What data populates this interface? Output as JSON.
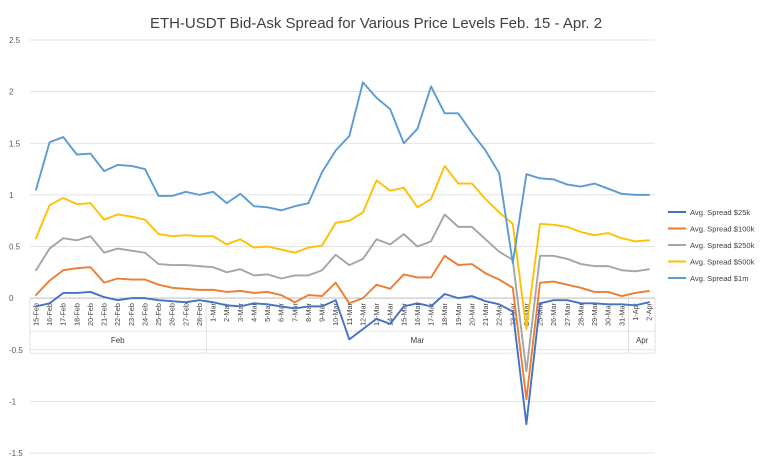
{
  "chart_data": {
    "type": "line",
    "title": "ETH-USDT Bid-Ask Spread for Various Price Levels Feb. 15 - Apr. 2",
    "xlabel": "",
    "ylabel": "",
    "ylim": [
      -1.5,
      2.5
    ],
    "ytick_step": 0.5,
    "ytick_labels": [
      "2.5",
      "2",
      "1.5",
      "1",
      "0.5",
      "0",
      "-0.5",
      "-1",
      "-1.5"
    ],
    "grid": true,
    "legend_position": "right",
    "x": [
      "15-Feb",
      "16-Feb",
      "17-Feb",
      "18-Feb",
      "20-Feb",
      "21-Feb",
      "22-Feb",
      "23-Feb",
      "24-Feb",
      "25-Feb",
      "26-Feb",
      "27-Feb",
      "28-Feb",
      "1-Mar",
      "2-Mar",
      "3-Mar",
      "4-Mar",
      "5-Mar",
      "6-Mar",
      "7-Mar",
      "8-Mar",
      "9-Mar",
      "10-Mar",
      "11-Mar",
      "12-Mar",
      "13-Mar",
      "14-Mar",
      "15-Mar",
      "16-Mar",
      "17-Mar",
      "18-Mar",
      "19-Mar",
      "20-Mar",
      "21-Mar",
      "22-Mar",
      "23-Mar",
      "24-Mar",
      "25-Mar",
      "26-Mar",
      "27-Mar",
      "28-Mar",
      "29-Mar",
      "30-Mar",
      "31-Mar",
      "1-Apr",
      "2-Apr"
    ],
    "x_groups": [
      {
        "label": "Feb",
        "start": 0,
        "end": 12
      },
      {
        "label": "Mar",
        "start": 13,
        "end": 43
      },
      {
        "label": "Apr",
        "start": 44,
        "end": 45
      }
    ],
    "series": [
      {
        "name": "Avg. Spread $25k",
        "color": "#4472C4",
        "values": [
          -0.08,
          -0.05,
          0.05,
          0.05,
          0.06,
          0.01,
          -0.02,
          0.0,
          0.0,
          -0.02,
          -0.03,
          -0.04,
          -0.02,
          -0.04,
          -0.07,
          -0.08,
          -0.05,
          -0.06,
          -0.08,
          -0.1,
          -0.08,
          -0.08,
          -0.02,
          -0.4,
          -0.3,
          -0.2,
          -0.25,
          -0.08,
          -0.05,
          -0.08,
          0.04,
          0.0,
          0.02,
          -0.03,
          -0.06,
          -0.13,
          -1.22,
          -0.05,
          -0.02,
          -0.02,
          -0.05,
          -0.05,
          -0.06,
          -0.06,
          -0.07,
          -0.04
        ]
      },
      {
        "name": "Avg. Spread $100k",
        "color": "#ED7D31",
        "values": [
          0.03,
          0.17,
          0.27,
          0.29,
          0.3,
          0.15,
          0.19,
          0.18,
          0.18,
          0.13,
          0.1,
          0.09,
          0.08,
          0.08,
          0.06,
          0.07,
          0.05,
          0.06,
          0.03,
          -0.04,
          0.03,
          0.02,
          0.15,
          -0.05,
          0.0,
          0.13,
          0.09,
          0.23,
          0.2,
          0.2,
          0.41,
          0.32,
          0.33,
          0.24,
          0.18,
          0.1,
          -0.98,
          0.15,
          0.16,
          0.13,
          0.1,
          0.06,
          0.06,
          0.02,
          0.05,
          0.07
        ]
      },
      {
        "name": "Avg. Spread $250k",
        "color": "#A5A5A5",
        "values": [
          0.27,
          0.48,
          0.58,
          0.56,
          0.6,
          0.44,
          0.48,
          0.46,
          0.44,
          0.33,
          0.32,
          0.32,
          0.31,
          0.3,
          0.25,
          0.28,
          0.22,
          0.23,
          0.19,
          0.22,
          0.22,
          0.27,
          0.42,
          0.32,
          0.38,
          0.57,
          0.52,
          0.62,
          0.5,
          0.55,
          0.81,
          0.69,
          0.69,
          0.57,
          0.45,
          0.37,
          -0.71,
          0.41,
          0.41,
          0.38,
          0.33,
          0.31,
          0.31,
          0.27,
          0.26,
          0.28
        ]
      },
      {
        "name": "Avg. Spread $500k",
        "color": "#FFC000",
        "values": [
          0.58,
          0.9,
          0.97,
          0.91,
          0.92,
          0.76,
          0.81,
          0.79,
          0.76,
          0.62,
          0.6,
          0.61,
          0.6,
          0.6,
          0.52,
          0.57,
          0.49,
          0.5,
          0.47,
          0.44,
          0.49,
          0.51,
          0.73,
          0.75,
          0.83,
          1.14,
          1.04,
          1.07,
          0.88,
          0.96,
          1.28,
          1.11,
          1.11,
          0.96,
          0.83,
          0.72,
          -0.3,
          0.72,
          0.71,
          0.69,
          0.64,
          0.61,
          0.63,
          0.58,
          0.55,
          0.56
        ]
      },
      {
        "name": "Avg. Spread $1m",
        "color": "#5B9BD5",
        "values": [
          1.05,
          1.51,
          1.56,
          1.39,
          1.4,
          1.23,
          1.29,
          1.28,
          1.25,
          0.99,
          0.99,
          1.03,
          1.0,
          1.03,
          0.92,
          1.01,
          0.89,
          0.88,
          0.85,
          0.89,
          0.92,
          1.22,
          1.43,
          1.57,
          2.09,
          1.94,
          1.83,
          1.5,
          1.64,
          2.05,
          1.79,
          1.79,
          1.6,
          1.43,
          1.21,
          0.34,
          1.2,
          1.16,
          1.15,
          1.1,
          1.08,
          1.11,
          1.06,
          1.01,
          1.0,
          1.0
        ]
      }
    ]
  }
}
